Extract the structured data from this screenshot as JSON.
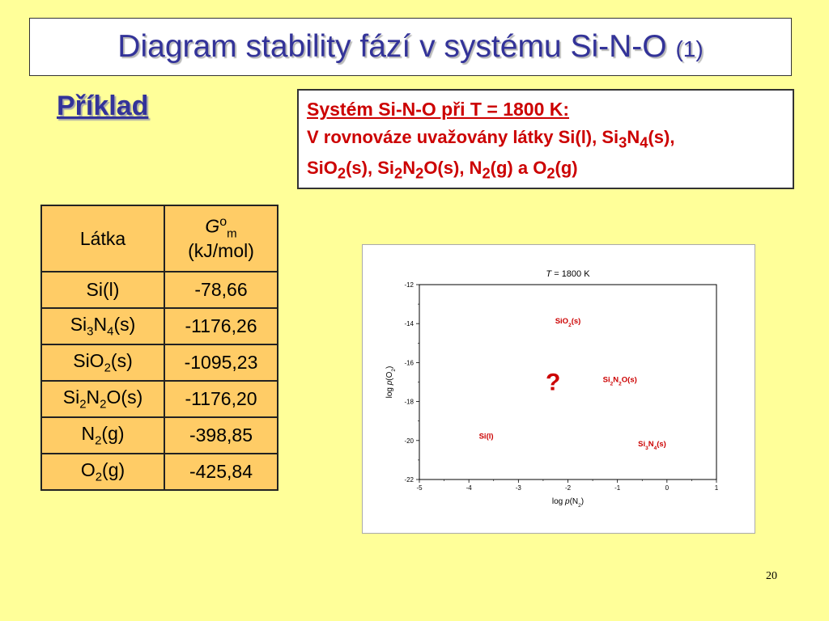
{
  "title": {
    "main": "Diagram stability fází v systému Si-N-O ",
    "suffix": "(1)"
  },
  "section_label": "Příklad",
  "system_box": {
    "heading": "Systém Si-N-O při T = 1800 K:",
    "line1": [
      "V rovnováze uvažovány látky Si(l), Si",
      "3",
      "N",
      "4",
      "(s),"
    ],
    "line2": [
      "SiO",
      "2",
      "(s), Si",
      "2",
      "N",
      "2",
      "O(s), N",
      "2",
      "(g) a O",
      "2",
      "(g)"
    ]
  },
  "table": {
    "headers": {
      "col1": "Látka",
      "col2_symbol": "G",
      "col2_sup": "o",
      "col2_sub": "m",
      "col2_unit": "(kJ/mol)"
    },
    "rows": [
      {
        "substance": [
          "Si(l)"
        ],
        "value": "-78,66"
      },
      {
        "substance": [
          "Si",
          "3",
          "N",
          "4",
          "(s)"
        ],
        "value": "-1176,26"
      },
      {
        "substance": [
          "SiO",
          "2",
          "(s)"
        ],
        "value": "-1095,23"
      },
      {
        "substance": [
          "Si",
          "2",
          "N",
          "2",
          "O(s)"
        ],
        "value": "-1176,20"
      },
      {
        "substance": [
          "N",
          "2",
          "(g)"
        ],
        "value": "-398,85"
      },
      {
        "substance": [
          "O",
          "2",
          "(g)"
        ],
        "value": "-425,84"
      }
    ]
  },
  "chart_data": {
    "type": "scatter",
    "title_italic": "T",
    "title_rest": " = 1800 K",
    "xlabel": [
      "log ",
      "p",
      "(N",
      "2",
      ")"
    ],
    "ylabel": [
      "log ",
      "p",
      "(O",
      "2",
      ")"
    ],
    "xlim": [
      -5,
      1
    ],
    "ylim": [
      -22,
      -12
    ],
    "xticks": [
      "-5",
      "-4",
      "-3",
      "-2",
      "-1",
      "0",
      "1"
    ],
    "yticks": [
      "-12",
      "-14",
      "-16",
      "-18",
      "-20",
      "-22"
    ],
    "xtick_values": [
      -5,
      -4,
      -3,
      -2,
      -1,
      0,
      1
    ],
    "ytick_values": [
      -12,
      -14,
      -16,
      -18,
      -20,
      -22
    ],
    "region_labels": [
      {
        "parts": [
          "SiO",
          "2",
          "(s)"
        ],
        "x": -2.0,
        "y": -14.0
      },
      {
        "parts": [
          "Si",
          "2",
          "N",
          "2",
          "O(s)"
        ],
        "x": -0.95,
        "y": -17.0
      },
      {
        "parts": [
          "Si(l)"
        ],
        "x": -3.65,
        "y": -19.9
      },
      {
        "parts": [
          "Si",
          "3",
          "N",
          "4",
          "(s)"
        ],
        "x": -0.3,
        "y": -20.3
      }
    ],
    "question_mark": {
      "text": "?",
      "x": -2.3,
      "y": -17.0
    },
    "label_color": "#cc0000"
  },
  "page_number": "20",
  "colors": {
    "background": "#ffff99",
    "title": "#333399",
    "accent_red": "#cc0000",
    "table_fill": "#ffcc66"
  }
}
